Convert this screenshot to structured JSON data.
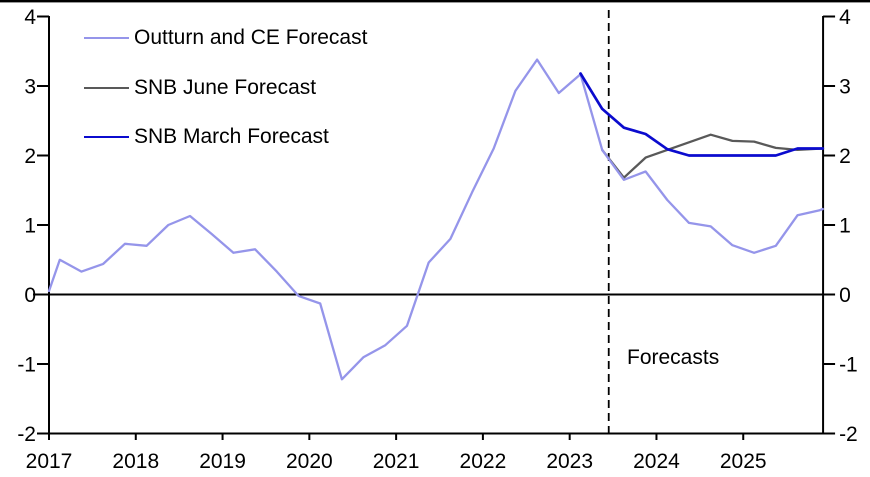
{
  "annotation": {
    "forecasts_label": "Forecasts"
  },
  "legend": [
    {
      "label": "Outturn and CE Forecast",
      "color": "#9595EA"
    },
    {
      "label": "SNB June Forecast",
      "color": "#595959"
    },
    {
      "label": "SNB March Forecast",
      "color": "#0B0BCE"
    }
  ],
  "chart_data": {
    "type": "line",
    "title": "",
    "xlabel": "",
    "ylabel": "",
    "xlim": [
      2017,
      2025.92
    ],
    "ylim": [
      -2,
      4
    ],
    "grid": false,
    "zero_line": true,
    "legend_position": "top-left",
    "forecast_divider_x": 2023.45,
    "y_ticks": [
      4,
      3,
      2,
      1,
      0,
      -1,
      -2
    ],
    "y_tick_labels": [
      "4",
      "3",
      "2",
      "1",
      "0",
      "-1",
      "-2"
    ],
    "x_ticks": [
      2017,
      2018,
      2019,
      2020,
      2021,
      2022,
      2023,
      2024,
      2025
    ],
    "x_tick_labels": [
      "2017",
      "2018",
      "2019",
      "2020",
      "2021",
      "2022",
      "2023",
      "2024",
      "2025"
    ],
    "axis_color": "#000000",
    "series": [
      {
        "name": "SNB June Forecast",
        "color": "#595959",
        "width": 2.3,
        "points": [
          [
            2023.375,
            2.08
          ],
          [
            2023.625,
            1.68
          ],
          [
            2023.875,
            1.97
          ],
          [
            2024.125,
            2.08
          ],
          [
            2024.375,
            2.19
          ],
          [
            2024.625,
            2.3
          ],
          [
            2024.875,
            2.21
          ],
          [
            2025.125,
            2.2
          ],
          [
            2025.375,
            2.11
          ],
          [
            2025.625,
            2.08
          ],
          [
            2025.917,
            2.1
          ]
        ]
      },
      {
        "name": "Outturn and CE Forecast",
        "color": "#9595EA",
        "width": 2.3,
        "points": [
          [
            2017.0,
            0.05
          ],
          [
            2017.125,
            0.5
          ],
          [
            2017.375,
            0.33
          ],
          [
            2017.625,
            0.44
          ],
          [
            2017.875,
            0.73
          ],
          [
            2018.125,
            0.7
          ],
          [
            2018.375,
            1.0
          ],
          [
            2018.625,
            1.13
          ],
          [
            2018.875,
            0.87
          ],
          [
            2019.125,
            0.6
          ],
          [
            2019.375,
            0.65
          ],
          [
            2019.625,
            0.33
          ],
          [
            2019.875,
            -0.02
          ],
          [
            2020.125,
            -0.13
          ],
          [
            2020.375,
            -1.22
          ],
          [
            2020.625,
            -0.9
          ],
          [
            2020.875,
            -0.73
          ],
          [
            2021.125,
            -0.45
          ],
          [
            2021.375,
            0.46
          ],
          [
            2021.625,
            0.8
          ],
          [
            2021.875,
            1.47
          ],
          [
            2022.125,
            2.1
          ],
          [
            2022.375,
            2.93
          ],
          [
            2022.625,
            3.38
          ],
          [
            2022.875,
            2.9
          ],
          [
            2023.125,
            3.17
          ],
          [
            2023.375,
            2.08
          ],
          [
            2023.625,
            1.65
          ],
          [
            2023.875,
            1.77
          ],
          [
            2024.125,
            1.36
          ],
          [
            2024.375,
            1.03
          ],
          [
            2024.625,
            0.98
          ],
          [
            2024.875,
            0.71
          ],
          [
            2025.125,
            0.6
          ],
          [
            2025.375,
            0.7
          ],
          [
            2025.625,
            1.14
          ],
          [
            2025.875,
            1.21
          ],
          [
            2025.917,
            1.23
          ]
        ]
      },
      {
        "name": "SNB March Forecast",
        "color": "#0B0BCE",
        "width": 2.7,
        "points": [
          [
            2023.125,
            3.18
          ],
          [
            2023.375,
            2.67
          ],
          [
            2023.625,
            2.4
          ],
          [
            2023.875,
            2.31
          ],
          [
            2024.125,
            2.09
          ],
          [
            2024.375,
            2.0
          ],
          [
            2024.625,
            2.0
          ],
          [
            2024.875,
            2.0
          ],
          [
            2025.125,
            2.0
          ],
          [
            2025.375,
            2.0
          ],
          [
            2025.625,
            2.1
          ],
          [
            2025.875,
            2.1
          ],
          [
            2025.917,
            2.1
          ]
        ]
      }
    ]
  }
}
